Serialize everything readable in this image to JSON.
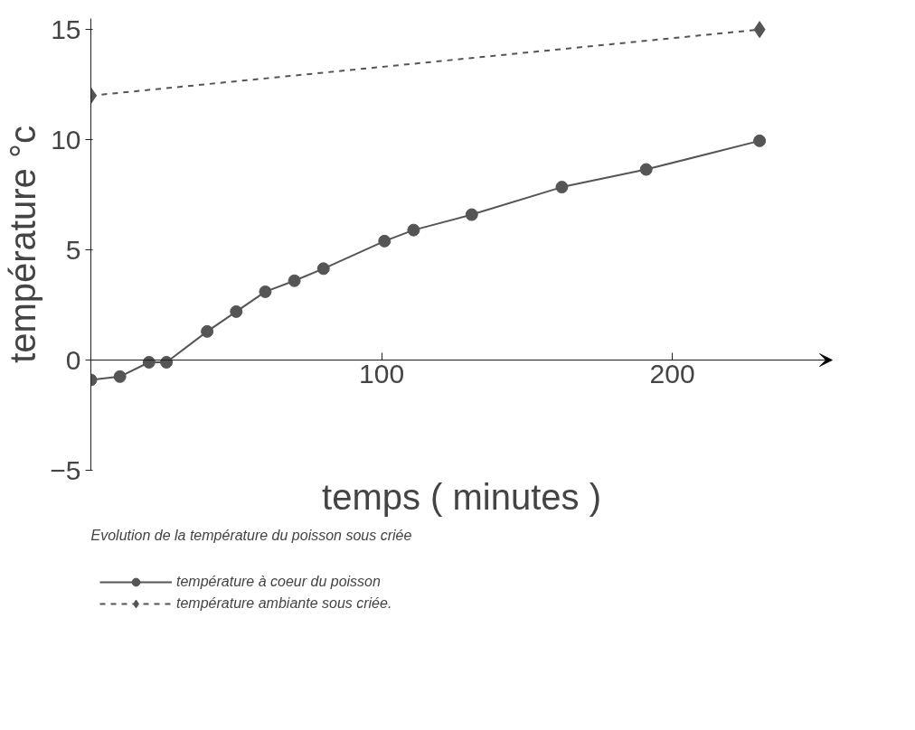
{
  "chart_data": {
    "type": "line",
    "xlabel": "temps ( minutes )",
    "ylabel": "température °c",
    "xlim": [
      0,
      255
    ],
    "ylim": [
      -5,
      15.5
    ],
    "xticks": [
      100,
      200
    ],
    "yticks": [
      -5,
      0,
      5,
      10,
      15
    ],
    "grid": false,
    "legend": "bottom",
    "annotations": [
      "Evolution de la température du poisson sous criée"
    ],
    "series": [
      {
        "name": "température à coeur du poisson",
        "color": "#555555",
        "marker": "circle",
        "line_style": "solid",
        "x": [
          0,
          10,
          20,
          26,
          40,
          50,
          60,
          70,
          80,
          101,
          111,
          131,
          162,
          191,
          230
        ],
        "values": [
          -0.9,
          -0.75,
          -0.1,
          -0.1,
          1.3,
          2.2,
          3.1,
          3.6,
          4.15,
          5.4,
          5.9,
          6.6,
          7.85,
          8.65,
          9.95
        ]
      },
      {
        "name": "température ambiante sous criée.",
        "color": "#555555",
        "marker": "diamond",
        "line_style": "dashed",
        "x": [
          0,
          230
        ],
        "values": [
          12.0,
          15.0
        ]
      }
    ]
  }
}
